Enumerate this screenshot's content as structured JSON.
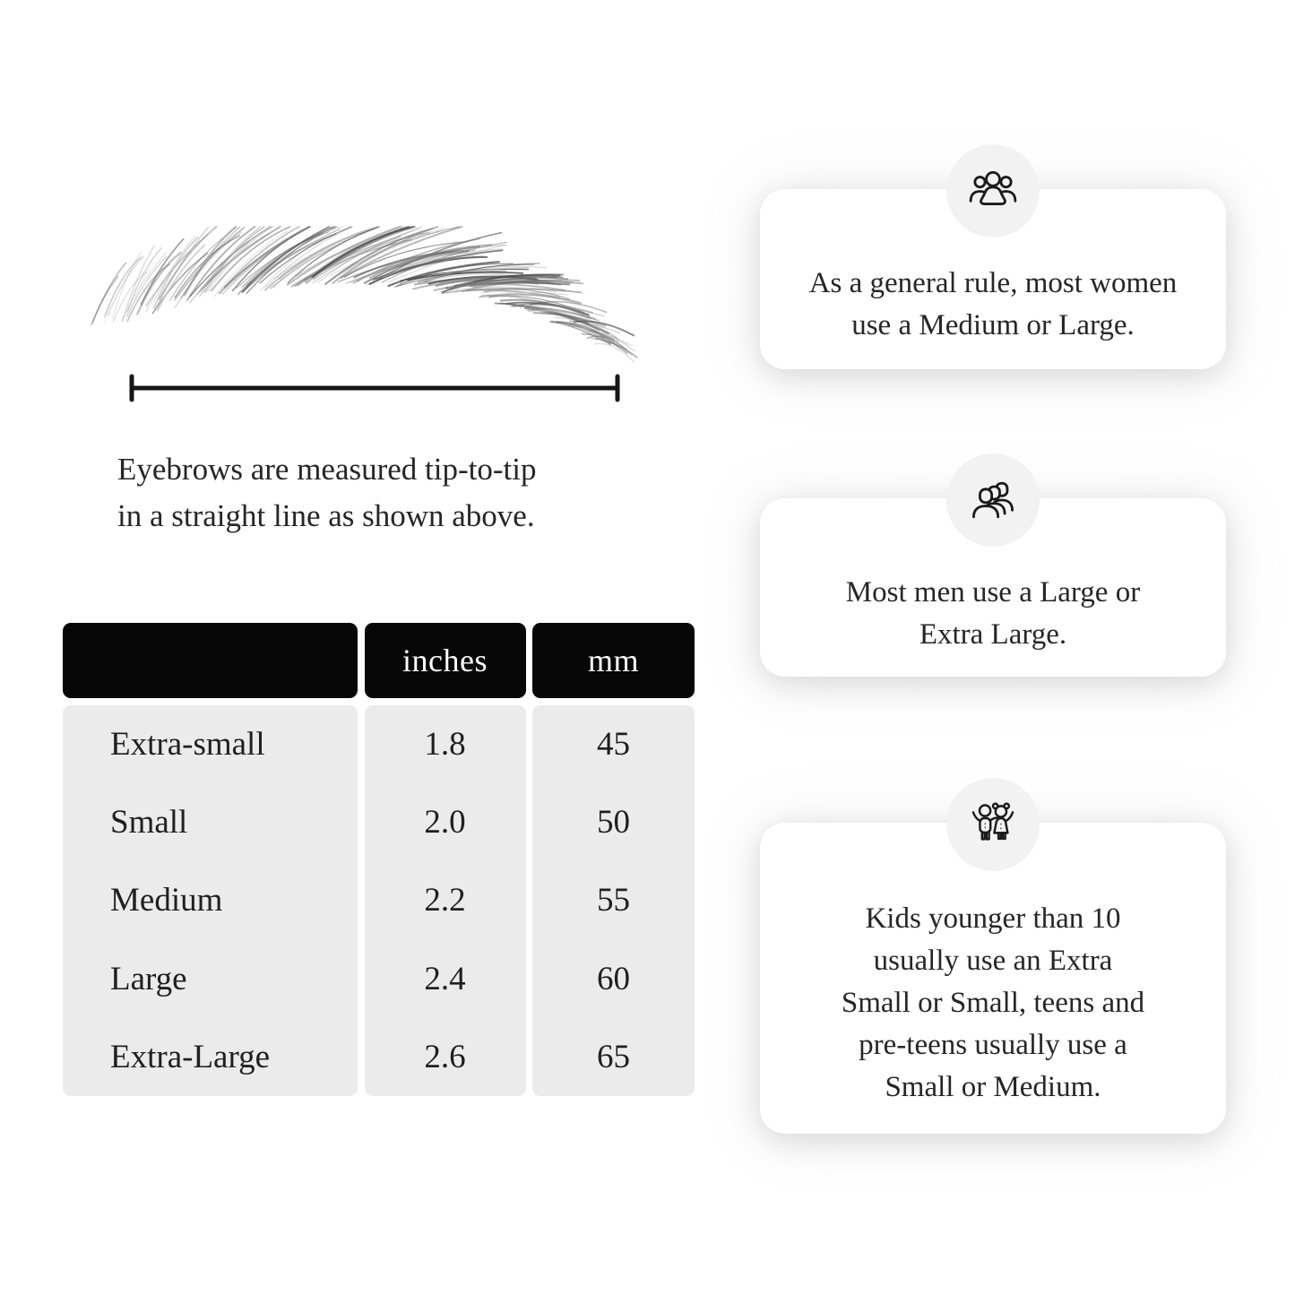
{
  "page": {
    "background": "#ffffff",
    "text_color": "#1e1e1e"
  },
  "measure": {
    "caption_lines": [
      "Eyebrows are measured tip-to-tip",
      "in a straight line as shown above."
    ]
  },
  "size_table": {
    "header_bg": "#070707",
    "header_text_color": "#ffffff",
    "body_bg": "#ebebeb",
    "columns": [
      "",
      "inches",
      "mm"
    ],
    "rows": [
      {
        "label": "Extra-small",
        "inches": "1.8",
        "mm": "45"
      },
      {
        "label": "Small",
        "inches": "2.0",
        "mm": "50"
      },
      {
        "label": "Medium",
        "inches": "2.2",
        "mm": "55"
      },
      {
        "label": "Large",
        "inches": "2.4",
        "mm": "60"
      },
      {
        "label": "Extra-Large",
        "inches": "2.6",
        "mm": "65"
      }
    ]
  },
  "cards": [
    {
      "icon": "women-group-icon",
      "lines": [
        "As a general rule, most women",
        "use a Medium or Large."
      ]
    },
    {
      "icon": "men-group-icon",
      "lines": [
        "Most men use a Large or",
        "Extra Large."
      ]
    },
    {
      "icon": "kids-icon",
      "lines": [
        "Kids younger than 10",
        "usually use an Extra",
        "Small or Small, teens and",
        "pre-teens usually use a",
        "Small or Medium."
      ]
    }
  ]
}
